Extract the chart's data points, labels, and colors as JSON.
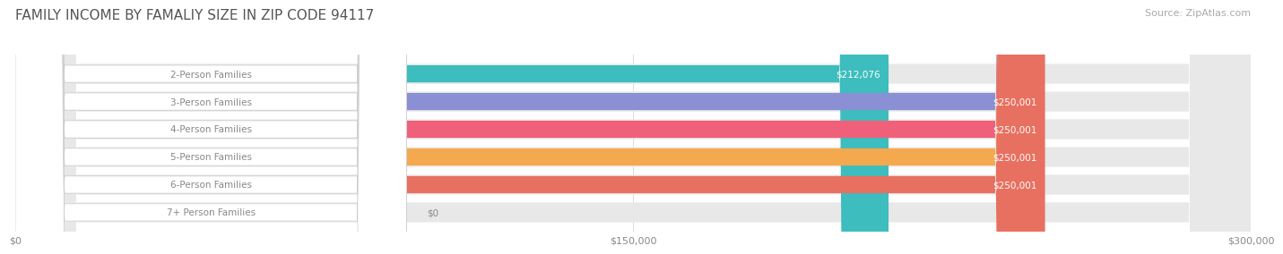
{
  "title": "FAMILY INCOME BY FAMALIY SIZE IN ZIP CODE 94117",
  "source": "Source: ZipAtlas.com",
  "categories": [
    "2-Person Families",
    "3-Person Families",
    "4-Person Families",
    "5-Person Families",
    "6-Person Families",
    "7+ Person Families"
  ],
  "values": [
    212076,
    250001,
    250001,
    250001,
    250001,
    0
  ],
  "bar_colors": [
    "#3dbdbd",
    "#8b8fd4",
    "#f0607a",
    "#f5a94e",
    "#e87060",
    "#a8c4e0"
  ],
  "track_color": "#e8e8e8",
  "label_bg": "#ffffff",
  "label_text_color": "#888888",
  "value_text_color": "#ffffff",
  "zero_text_color": "#888888",
  "xlim": [
    0,
    300000
  ],
  "xticks": [
    0,
    150000,
    300000
  ],
  "xtick_labels": [
    "$0",
    "$150,000",
    "$300,000"
  ],
  "background_color": "#ffffff",
  "title_fontsize": 11,
  "source_fontsize": 8,
  "bar_label_fontsize": 7.5,
  "value_fontsize": 7.5
}
